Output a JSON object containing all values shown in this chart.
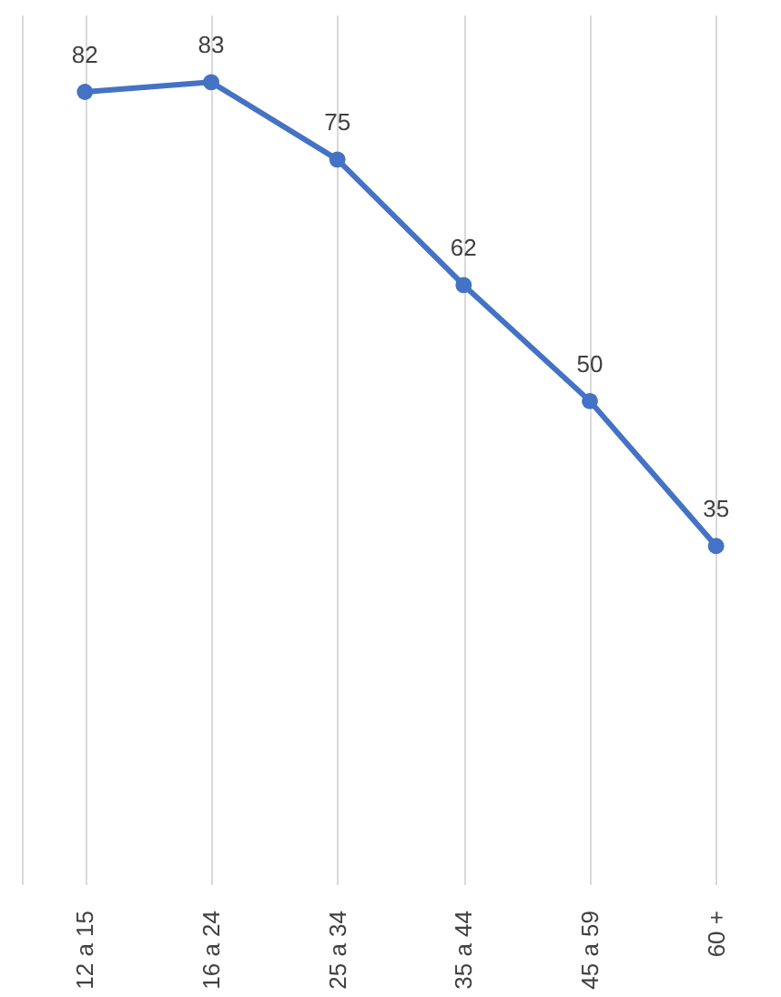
{
  "chart_data": {
    "type": "line",
    "categories": [
      "12 a 15",
      "16 a 24",
      "25 a 34",
      "35 a 44",
      "45 a 59",
      "60 +"
    ],
    "series": [
      {
        "color": "#4472c4",
        "values": [
          82,
          83,
          75,
          62,
          50,
          35
        ]
      }
    ],
    "ylim": [
      0,
      90
    ],
    "data_labels": true,
    "grid": "x",
    "marker": "circle",
    "line_style": "solid",
    "tick_labels": "x"
  }
}
